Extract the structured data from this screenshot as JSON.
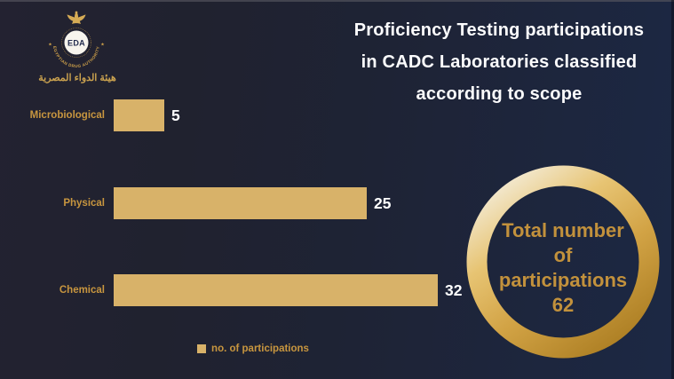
{
  "header": {
    "title_lines": [
      "Proficiency Testing participations",
      "in CADC Laboratories classified",
      "according to scope"
    ]
  },
  "logo": {
    "acronym": "EDA",
    "ring_text": "EGYPTIAN DRUG AUTHORITY",
    "star": "★",
    "arabic_name": "هيئة الدواء المصرية"
  },
  "chart_data": {
    "type": "bar",
    "orientation": "horizontal",
    "categories": [
      "Microbiological",
      "Physical",
      "Chemical"
    ],
    "values": [
      5,
      25,
      32
    ],
    "series": [
      {
        "name": "no. of participations",
        "values": [
          5,
          25,
          32
        ]
      }
    ],
    "legend": {
      "label": "no. of participations",
      "position": "bottom"
    },
    "xlim": [
      0,
      32
    ],
    "grid": false,
    "bar_color": "#d8b269",
    "category_label_color": "#c8963f",
    "value_label_color": "#ffffff"
  },
  "total_badge": {
    "lines": [
      "Total number",
      "of",
      "participations"
    ],
    "value": "62",
    "text_color": "#c2913c",
    "ring_gradient": [
      "#f4ecd8",
      "#e7c473",
      "#d2a345",
      "#ab7d22"
    ]
  }
}
